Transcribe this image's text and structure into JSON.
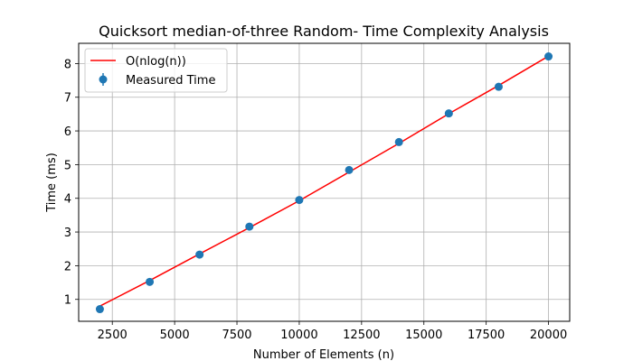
{
  "chart_data": {
    "type": "scatter",
    "title": "Quicksort median-of-three Random- Time Complexity Analysis",
    "xlabel": "Number of Elements (n)",
    "ylabel": "Time (ms)",
    "xlim": [
      1150,
      20850
    ],
    "ylim": [
      0.35,
      8.6
    ],
    "xticks": [
      2500,
      5000,
      7500,
      10000,
      12500,
      15000,
      17500,
      20000
    ],
    "yticks": [
      1,
      2,
      3,
      4,
      5,
      6,
      7,
      8
    ],
    "grid": true,
    "legend_position": "top-left",
    "series": [
      {
        "name": "O(nlog(n))",
        "kind": "line",
        "color": "#ff0000",
        "x": [
          2000,
          4000,
          6000,
          8000,
          10000,
          12000,
          14000,
          16000,
          18000,
          20000
        ],
        "y": [
          0.8,
          1.56,
          2.35,
          3.13,
          3.93,
          4.78,
          5.63,
          6.51,
          7.35,
          8.22
        ]
      },
      {
        "name": "Measured Time",
        "kind": "errorbar-markers",
        "color": "#1f77b4",
        "x": [
          2000,
          4000,
          6000,
          8000,
          10000,
          12000,
          14000,
          16000,
          18000,
          20000
        ],
        "y": [
          0.71,
          1.52,
          2.33,
          3.16,
          3.95,
          4.84,
          5.67,
          6.52,
          7.31,
          8.21
        ]
      }
    ]
  }
}
